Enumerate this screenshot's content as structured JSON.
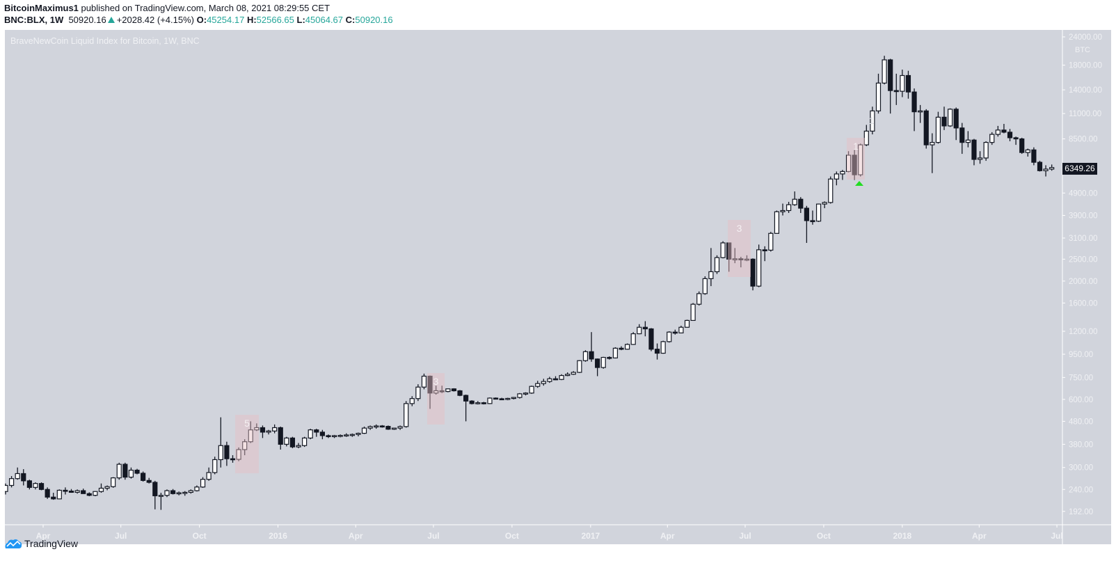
{
  "header": {
    "author": "BitcoinMaximus1",
    "published": " published on TradingView.com, March 08, 2021 08:29:55 CET",
    "symbol": "BNC:BLX, 1W",
    "price": "50920.16",
    "change": "+2028.42 (+4.15%)",
    "o_label": "O:",
    "o": "45254.17",
    "h_label": "H:",
    "h": "52566.65",
    "l_label": "L:",
    "l": "45064.67",
    "c_label": "C:",
    "c": "50920.16",
    "up_icon": "triangle-up-icon"
  },
  "colors": {
    "background": "#d1d4dc",
    "up_body": "#ffffff",
    "down_body": "#131722",
    "ohlc_value": "#26a69a",
    "signal_marker": "#22dd22",
    "highlight_box": "#e6bec3"
  },
  "footer": {
    "brand": "TradingView",
    "logo_icon": "tradingview-cloud-icon"
  },
  "annotations": {
    "box_a": "5",
    "box_b": "3",
    "box_c": "3",
    "box_d": "1",
    "faint_label": "1",
    "marker_icon": "green-triangle-up-icon"
  },
  "chart_data": {
    "type": "candlestick",
    "title": "BraveNewCoin Liquid Index for Bitcoin, 1W, BNC",
    "currency": "BTC",
    "last_price": "6349.26",
    "y_scale": "log",
    "ylim": [
      180,
      24000
    ],
    "grid": false,
    "y_ticks": [
      "24000.00",
      "18000.00",
      "14000.00",
      "11000.00",
      "8500.00",
      "4900.00",
      "3900.00",
      "3100.00",
      "2500.00",
      "2000.00",
      "1600.00",
      "1200.00",
      "950.00",
      "750.00",
      "600.00",
      "480.00",
      "380.00",
      "300.00",
      "240.00",
      "192.00"
    ],
    "x_ticks": [
      {
        "label": "Apr",
        "date": "2015-04-01"
      },
      {
        "label": "Jul",
        "date": "2015-07-01"
      },
      {
        "label": "Oct",
        "date": "2015-10-01"
      },
      {
        "label": "2016",
        "date": "2016-01-01"
      },
      {
        "label": "Apr",
        "date": "2016-04-01"
      },
      {
        "label": "Jul",
        "date": "2016-07-01"
      },
      {
        "label": "Oct",
        "date": "2016-10-01"
      },
      {
        "label": "2017",
        "date": "2017-01-01"
      },
      {
        "label": "Apr",
        "date": "2017-04-01"
      },
      {
        "label": "Jul",
        "date": "2017-07-01"
      },
      {
        "label": "Oct",
        "date": "2017-10-01"
      },
      {
        "label": "2018",
        "date": "2018-01-01"
      },
      {
        "label": "Apr",
        "date": "2018-04-01"
      },
      {
        "label": "Jul",
        "date": "2018-07-01"
      }
    ],
    "columns": [
      "date",
      "open",
      "high",
      "low",
      "close"
    ],
    "candles": [
      [
        "2015-02-16",
        235,
        255,
        228,
        250
      ],
      [
        "2015-02-23",
        250,
        275,
        245,
        268
      ],
      [
        "2015-03-02",
        268,
        300,
        265,
        282
      ],
      [
        "2015-03-09",
        282,
        295,
        250,
        262
      ],
      [
        "2015-03-16",
        262,
        265,
        240,
        245
      ],
      [
        "2015-03-23",
        245,
        258,
        240,
        255
      ],
      [
        "2015-03-30",
        255,
        258,
        238,
        240
      ],
      [
        "2015-04-06",
        240,
        245,
        218,
        222
      ],
      [
        "2015-04-13",
        222,
        232,
        216,
        218
      ],
      [
        "2015-04-20",
        218,
        240,
        217,
        238
      ],
      [
        "2015-04-27",
        238,
        245,
        228,
        236
      ],
      [
        "2015-05-04",
        236,
        241,
        232,
        233
      ],
      [
        "2015-05-11",
        233,
        240,
        230,
        237
      ],
      [
        "2015-05-18",
        237,
        242,
        232,
        230
      ],
      [
        "2015-05-25",
        230,
        233,
        224,
        226
      ],
      [
        "2015-06-01",
        226,
        236,
        224,
        235
      ],
      [
        "2015-06-08",
        235,
        255,
        232,
        243
      ],
      [
        "2015-06-15",
        243,
        250,
        238,
        247
      ],
      [
        "2015-06-22",
        247,
        272,
        244,
        270
      ],
      [
        "2015-06-29",
        270,
        315,
        265,
        310
      ],
      [
        "2015-07-06",
        310,
        315,
        265,
        272
      ],
      [
        "2015-07-13",
        272,
        300,
        268,
        292
      ],
      [
        "2015-07-20",
        292,
        296,
        280,
        283
      ],
      [
        "2015-07-27",
        283,
        288,
        260,
        263
      ],
      [
        "2015-08-03",
        263,
        270,
        255,
        258
      ],
      [
        "2015-08-10",
        258,
        262,
        196,
        225
      ],
      [
        "2015-08-17",
        225,
        232,
        195,
        226
      ],
      [
        "2015-08-24",
        226,
        240,
        222,
        237
      ],
      [
        "2015-08-31",
        237,
        241,
        228,
        230
      ],
      [
        "2015-09-07",
        230,
        235,
        226,
        232
      ],
      [
        "2015-09-14",
        232,
        236,
        225,
        233
      ],
      [
        "2015-09-21",
        233,
        240,
        230,
        237
      ],
      [
        "2015-09-28",
        237,
        250,
        235,
        246
      ],
      [
        "2015-10-05",
        246,
        272,
        244,
        266
      ],
      [
        "2015-10-12",
        266,
        300,
        262,
        285
      ],
      [
        "2015-10-19",
        285,
        335,
        280,
        325
      ],
      [
        "2015-10-26",
        325,
        500,
        300,
        375
      ],
      [
        "2015-11-02",
        375,
        390,
        305,
        328
      ],
      [
        "2015-11-09",
        328,
        340,
        315,
        326
      ],
      [
        "2015-11-16",
        326,
        368,
        320,
        360
      ],
      [
        "2015-11-23",
        360,
        400,
        340,
        390
      ],
      [
        "2015-11-30",
        390,
        480,
        385,
        440
      ],
      [
        "2015-12-07",
        440,
        470,
        435,
        450
      ],
      [
        "2015-12-14",
        450,
        460,
        405,
        430
      ],
      [
        "2015-12-21",
        430,
        440,
        420,
        435
      ],
      [
        "2015-12-28",
        435,
        465,
        425,
        450
      ],
      [
        "2016-01-04",
        450,
        455,
        360,
        380
      ],
      [
        "2016-01-11",
        380,
        410,
        372,
        405
      ],
      [
        "2016-01-18",
        405,
        410,
        365,
        370
      ],
      [
        "2016-01-25",
        370,
        385,
        365,
        375
      ],
      [
        "2016-02-01",
        375,
        410,
        370,
        405
      ],
      [
        "2016-02-08",
        405,
        445,
        400,
        440
      ],
      [
        "2016-02-15",
        440,
        445,
        410,
        430
      ],
      [
        "2016-02-22",
        430,
        440,
        400,
        415
      ],
      [
        "2016-02-29",
        415,
        420,
        405,
        412
      ],
      [
        "2016-03-07",
        412,
        418,
        405,
        415
      ],
      [
        "2016-03-14",
        415,
        420,
        408,
        416
      ],
      [
        "2016-03-21",
        416,
        425,
        410,
        418
      ],
      [
        "2016-03-28",
        418,
        424,
        410,
        420
      ],
      [
        "2016-04-04",
        420,
        428,
        412,
        425
      ],
      [
        "2016-04-11",
        425,
        455,
        422,
        448
      ],
      [
        "2016-04-18",
        448,
        460,
        440,
        455
      ],
      [
        "2016-04-25",
        455,
        465,
        445,
        458
      ],
      [
        "2016-05-02",
        458,
        462,
        450,
        456
      ],
      [
        "2016-05-09",
        456,
        460,
        440,
        443
      ],
      [
        "2016-05-16",
        443,
        450,
        440,
        448
      ],
      [
        "2016-05-23",
        448,
        460,
        440,
        455
      ],
      [
        "2016-05-30",
        455,
        590,
        450,
        575
      ],
      [
        "2016-06-06",
        575,
        620,
        560,
        605
      ],
      [
        "2016-06-13",
        605,
        700,
        590,
        680
      ],
      [
        "2016-06-20",
        680,
        780,
        665,
        760
      ],
      [
        "2016-06-27",
        760,
        765,
        545,
        640
      ],
      [
        "2016-07-04",
        640,
        690,
        630,
        655
      ],
      [
        "2016-07-11",
        655,
        690,
        640,
        650
      ],
      [
        "2016-07-18",
        650,
        670,
        645,
        668
      ],
      [
        "2016-07-25",
        668,
        672,
        650,
        655
      ],
      [
        "2016-08-01",
        655,
        660,
        620,
        625
      ],
      [
        "2016-08-08",
        625,
        630,
        480,
        590
      ],
      [
        "2016-08-15",
        590,
        595,
        570,
        575
      ],
      [
        "2016-08-22",
        575,
        590,
        570,
        580
      ],
      [
        "2016-08-29",
        580,
        585,
        570,
        575
      ],
      [
        "2016-09-05",
        575,
        612,
        572,
        608
      ],
      [
        "2016-09-12",
        608,
        612,
        600,
        604
      ],
      [
        "2016-09-19",
        604,
        610,
        596,
        600
      ],
      [
        "2016-09-26",
        600,
        610,
        595,
        606
      ],
      [
        "2016-10-03",
        606,
        615,
        600,
        612
      ],
      [
        "2016-10-10",
        612,
        640,
        605,
        635
      ],
      [
        "2016-10-17",
        635,
        645,
        625,
        640
      ],
      [
        "2016-10-24",
        640,
        690,
        635,
        685
      ],
      [
        "2016-10-31",
        685,
        725,
        675,
        705
      ],
      [
        "2016-11-07",
        705,
        740,
        690,
        720
      ],
      [
        "2016-11-14",
        720,
        755,
        710,
        740
      ],
      [
        "2016-11-21",
        740,
        760,
        730,
        735
      ],
      [
        "2016-11-28",
        735,
        775,
        730,
        765
      ],
      [
        "2016-12-05",
        765,
        790,
        760,
        775
      ],
      [
        "2016-12-12",
        775,
        800,
        770,
        790
      ],
      [
        "2016-12-19",
        790,
        895,
        785,
        890
      ],
      [
        "2016-12-26",
        890,
        990,
        880,
        975
      ],
      [
        "2017-01-02",
        975,
        1190,
        880,
        905
      ],
      [
        "2017-01-09",
        905,
        910,
        760,
        830
      ],
      [
        "2017-01-16",
        830,
        925,
        820,
        920
      ],
      [
        "2017-01-23",
        920,
        930,
        900,
        915
      ],
      [
        "2017-01-30",
        915,
        1020,
        910,
        1010
      ],
      [
        "2017-02-06",
        1010,
        1030,
        990,
        1000
      ],
      [
        "2017-02-13",
        1000,
        1060,
        995,
        1050
      ],
      [
        "2017-02-20",
        1050,
        1190,
        1045,
        1170
      ],
      [
        "2017-02-27",
        1170,
        1290,
        1165,
        1250
      ],
      [
        "2017-03-06",
        1250,
        1330,
        1140,
        1230
      ],
      [
        "2017-03-13",
        1230,
        1240,
        980,
        1000
      ],
      [
        "2017-03-20",
        1000,
        1060,
        900,
        960
      ],
      [
        "2017-03-27",
        960,
        1090,
        955,
        1080
      ],
      [
        "2017-04-03",
        1080,
        1200,
        1070,
        1190
      ],
      [
        "2017-04-10",
        1190,
        1220,
        1160,
        1180
      ],
      [
        "2017-04-17",
        1180,
        1270,
        1175,
        1250
      ],
      [
        "2017-04-24",
        1250,
        1350,
        1245,
        1340
      ],
      [
        "2017-05-01",
        1340,
        1600,
        1335,
        1580
      ],
      [
        "2017-05-08",
        1580,
        1800,
        1560,
        1760
      ],
      [
        "2017-05-15",
        1760,
        2100,
        1740,
        2050
      ],
      [
        "2017-05-22",
        2050,
        2800,
        1900,
        2200
      ],
      [
        "2017-05-29",
        2200,
        2600,
        2150,
        2540
      ],
      [
        "2017-06-05",
        2540,
        3000,
        2520,
        2950
      ],
      [
        "2017-06-12",
        2950,
        2960,
        2200,
        2500
      ],
      [
        "2017-06-19",
        2500,
        2800,
        2400,
        2510
      ],
      [
        "2017-06-26",
        2510,
        2560,
        2300,
        2490
      ],
      [
        "2017-07-03",
        2490,
        2600,
        2450,
        2500
      ],
      [
        "2017-07-10",
        2500,
        2520,
        1820,
        1900
      ],
      [
        "2017-07-17",
        1900,
        2900,
        1880,
        2750
      ],
      [
        "2017-07-24",
        2750,
        2850,
        2450,
        2740
      ],
      [
        "2017-07-31",
        2740,
        3300,
        2700,
        3250
      ],
      [
        "2017-08-07",
        3250,
        4100,
        3240,
        4050
      ],
      [
        "2017-08-14",
        4050,
        4400,
        3900,
        4100
      ],
      [
        "2017-08-21",
        4100,
        4480,
        4000,
        4350
      ],
      [
        "2017-08-28",
        4350,
        4980,
        4300,
        4600
      ],
      [
        "2017-09-04",
        4600,
        4700,
        4000,
        4200
      ],
      [
        "2017-09-11",
        4200,
        4300,
        2950,
        3700
      ],
      [
        "2017-09-18",
        3700,
        4100,
        3550,
        3680
      ],
      [
        "2017-09-25",
        3680,
        4400,
        3650,
        4380
      ],
      [
        "2017-10-02",
        4380,
        4500,
        4200,
        4450
      ],
      [
        "2017-10-09",
        4450,
        5800,
        4400,
        5650
      ],
      [
        "2017-10-16",
        5650,
        6100,
        5300,
        5950
      ],
      [
        "2017-10-23",
        5950,
        6200,
        5600,
        6100
      ],
      [
        "2017-10-30",
        6100,
        7500,
        6050,
        7200
      ],
      [
        "2017-11-06",
        7200,
        7600,
        5600,
        5900
      ],
      [
        "2017-11-13",
        5900,
        8100,
        5800,
        8000
      ],
      [
        "2017-11-20",
        8000,
        9800,
        7900,
        9200
      ],
      [
        "2017-11-27",
        9200,
        11800,
        8900,
        11300
      ],
      [
        "2017-12-04",
        11300,
        16500,
        11000,
        15000
      ],
      [
        "2017-12-11",
        15000,
        19800,
        14800,
        19000
      ],
      [
        "2017-12-18",
        19000,
        19200,
        11000,
        13900
      ],
      [
        "2017-12-25",
        13900,
        16500,
        12000,
        13800
      ],
      [
        "2018-01-01",
        13800,
        17200,
        13000,
        16200
      ],
      [
        "2018-01-08",
        16200,
        17000,
        12800,
        13700
      ],
      [
        "2018-01-15",
        13700,
        14200,
        9200,
        11200
      ],
      [
        "2018-01-22",
        11200,
        12000,
        10000,
        11300
      ],
      [
        "2018-01-29",
        11300,
        11500,
        7700,
        8000
      ],
      [
        "2018-02-05",
        8000,
        9000,
        6000,
        8200
      ],
      [
        "2018-02-12",
        8200,
        11200,
        8100,
        10600
      ],
      [
        "2018-02-19",
        10600,
        11800,
        9300,
        9700
      ],
      [
        "2018-02-26",
        9700,
        11600,
        9600,
        11500
      ],
      [
        "2018-03-05",
        11500,
        11700,
        8400,
        9500
      ],
      [
        "2018-03-12",
        9500,
        10000,
        7300,
        8200
      ],
      [
        "2018-03-19",
        8200,
        9200,
        7800,
        8400
      ],
      [
        "2018-03-26",
        8400,
        8500,
        6500,
        6900
      ],
      [
        "2018-04-02",
        6900,
        7500,
        6600,
        7000
      ],
      [
        "2018-04-09",
        7000,
        8300,
        6800,
        8200
      ],
      [
        "2018-04-16",
        8200,
        9100,
        8000,
        8900
      ],
      [
        "2018-04-23",
        8900,
        9700,
        8700,
        9300
      ],
      [
        "2018-04-30",
        9300,
        9900,
        9000,
        9100
      ],
      [
        "2018-05-07",
        9100,
        9400,
        8300,
        8600
      ],
      [
        "2018-05-14",
        8600,
        8700,
        8000,
        8500
      ],
      [
        "2018-05-21",
        8500,
        8600,
        7300,
        7400
      ],
      [
        "2018-05-28",
        7400,
        7700,
        7100,
        7600
      ],
      [
        "2018-06-04",
        7600,
        7800,
        6500,
        6700
      ],
      [
        "2018-06-11",
        6700,
        6800,
        6100,
        6150
      ],
      [
        "2018-06-18",
        6150,
        6500,
        5800,
        6250
      ],
      [
        "2018-06-25",
        6250,
        6550,
        6150,
        6349.26
      ]
    ]
  }
}
